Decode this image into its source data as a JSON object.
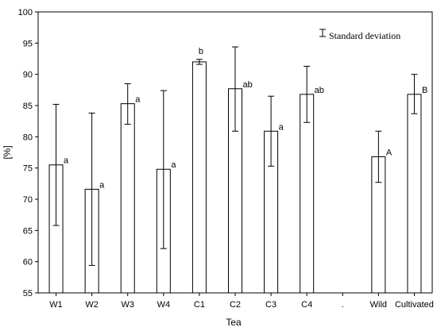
{
  "chart_data": {
    "type": "bar",
    "categories": [
      "W1",
      "W2",
      "W3",
      "W4",
      "C1",
      "C2",
      "C3",
      "C4",
      ".",
      "Wild",
      "Cultivated"
    ],
    "values": [
      75.5,
      71.6,
      85.3,
      74.8,
      92.0,
      87.7,
      80.9,
      86.8,
      null,
      76.8,
      86.8
    ],
    "error_low": [
      65.8,
      59.4,
      82.0,
      62.1,
      91.6,
      80.9,
      75.3,
      82.3,
      null,
      72.7,
      83.7
    ],
    "error_high": [
      85.2,
      83.8,
      88.5,
      87.4,
      92.4,
      94.4,
      86.5,
      91.3,
      null,
      80.9,
      90.0
    ],
    "significance_labels": [
      "a",
      "a",
      "a",
      "a",
      "b",
      "ab",
      "a",
      "ab",
      "",
      "A",
      "B"
    ],
    "xlabel": "Tea",
    "ylabel": "[%]",
    "ylim": [
      55,
      100
    ],
    "yticks": [
      55,
      60,
      65,
      70,
      75,
      80,
      85,
      90,
      95,
      100
    ],
    "legend": {
      "label": "Standard deviation",
      "placement": "top-right"
    },
    "grid": false,
    "bar_color": "#ffffff",
    "edge_color": "#000000"
  }
}
